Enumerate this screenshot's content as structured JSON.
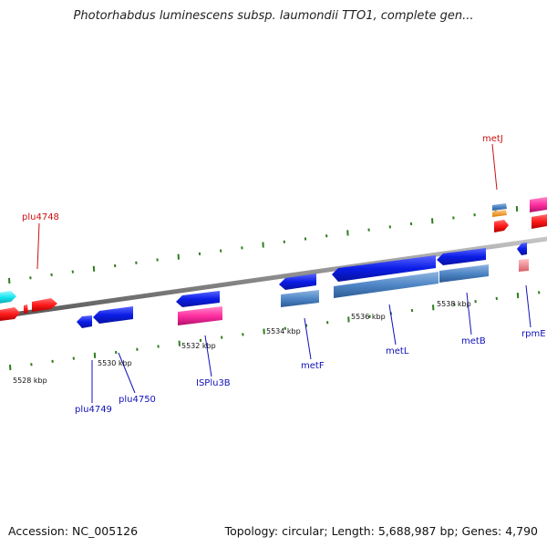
{
  "title": "Photorhabdus luminescens subsp. laumondii TTO1, complete gen...",
  "footer": {
    "accession": "Accession: NC_005126",
    "summary": "Topology: circular; Length: 5,688,987 bp; Genes: 4,790"
  },
  "colors": {
    "backbone": "#8a8a8a",
    "tick": "#2e7d1e",
    "cds_forward": "#0b1de6",
    "cds_reverse": "#ff1a1a",
    "cds_steel": "#4f86c6",
    "rna_magenta": "#ff2fa0",
    "cyan": "#19e6f0",
    "orange": "#ff9a1a",
    "pink": "#f08a90",
    "label_red": "#cc1010",
    "label_blue": "#1010bb"
  },
  "coordinate_labels": [
    {
      "id": "kbp-5528",
      "text": "5528 kbp"
    },
    {
      "id": "kbp-5530",
      "text": "5530 kbp"
    },
    {
      "id": "kbp-5532",
      "text": "5532 kbp"
    },
    {
      "id": "kbp-5534",
      "text": "5534 kbp"
    },
    {
      "id": "kbp-5536",
      "text": "5536 kbp"
    },
    {
      "id": "kbp-5538",
      "text": "5538 kbp"
    }
  ],
  "gene_labels": [
    {
      "id": "metJ",
      "text": "metJ",
      "strand": "reverse"
    },
    {
      "id": "plu4748",
      "text": "plu4748",
      "strand": "reverse"
    },
    {
      "id": "plu4749",
      "text": "plu4749",
      "strand": "forward"
    },
    {
      "id": "plu4750",
      "text": "plu4750",
      "strand": "forward"
    },
    {
      "id": "ISPlu3B",
      "text": "ISPlu3B",
      "strand": "forward"
    },
    {
      "id": "metF",
      "text": "metF",
      "strand": "forward"
    },
    {
      "id": "metL",
      "text": "metL",
      "strand": "forward"
    },
    {
      "id": "metB",
      "text": "metB",
      "strand": "forward"
    },
    {
      "id": "rpmE",
      "text": "rpmE",
      "strand": "forward"
    }
  ]
}
